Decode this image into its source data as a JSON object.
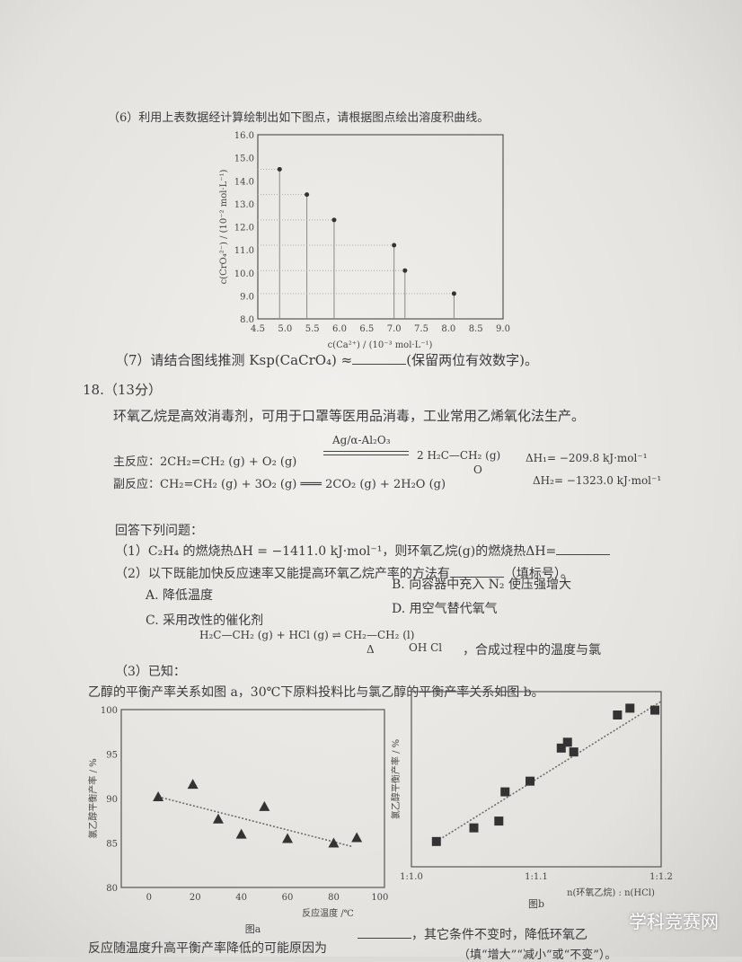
{
  "q6": "（6）利用上表数据经计算绘制出如下图点，请根据图点绘出溶度积曲线。",
  "q7": "（7）请结合图线推测 Ksp(CaCrO₄) ≈",
  "q7_tail": "(保留两位有效数字)。",
  "q18": "18.（13分）",
  "intro": "环氧乙烷是高效消毒剂，可用于口罩等医用品消毒，工业常用乙烯氧化法生产。",
  "main_reaction": "主反应：2CH₂=CH₂ (g) + O₂ (g)",
  "catalyst": "Ag/α-Al₂O₃",
  "main_product": "2 H₂C—CH₂ (g)",
  "epoxide_o": "O",
  "dh1": "ΔH₁= −209.8 kJ·mol⁻¹",
  "side_reaction": "副反应：CH₂=CH₂ (g) + 3O₂ (g) ═══ 2CO₂ (g) + 2H₂O (g)",
  "dh2": "ΔH₂= −1323.0 kJ·mol⁻¹",
  "answer": "回答下列问题：",
  "p1": "（1）C₂H₄ 的燃烧热ΔH = −1411.0 kJ·mol⁻¹，则环氧乙烷(g)的燃烧热ΔH=",
  "p2": "（2）以下既能加快反应速率又能提高环氧乙烷产率的方法有",
  "p2_tail": "（填标号）。",
  "optA": "A. 降低温度",
  "optB": "B. 向容器中充入 N₂ 使压强增大",
  "optC": "C. 采用改性的催化剂",
  "optD": "D. 用空气替代氧气",
  "p3_label": "（3）已知：",
  "p3_eq": "H₂C—CH₂ (g) + HCl (g) ⇌ CH₂—CH₂ (l)",
  "p3_delta": "Δ",
  "p3_sub": "OH    Cl",
  "p3_tail": "，合成过程中的温度与氯",
  "p3_line2": "乙醇的平衡产率关系如图 a，30℃下原料投料比与氯乙醇的平衡产率关系如图 b。",
  "bottom1": "，其它条件不变时，降低环氧乙",
  "bottom2": "反应随温度升高平衡产率降低的可能原因为",
  "bottom3": "（填“增大”“减小”或“不变”）。",
  "watermark": "学科竞赛网",
  "chart_data": [
    {
      "type": "scatter",
      "xlabel": "c(Ca²⁺) / (10⁻³ mol·L⁻¹)",
      "ylabel": "c(CrO₄²⁻) / (10⁻² mol·L⁻¹)",
      "xlim": [
        4.5,
        9.0
      ],
      "ylim": [
        8.0,
        16.0
      ],
      "xticks": [
        "4.5",
        "5.0",
        "5.5",
        "6.0",
        "6.5",
        "7.0",
        "7.5",
        "8.0",
        "8.5",
        "9.0"
      ],
      "yticks": [
        "8.0",
        "9.0",
        "10.0",
        "11.0",
        "12.0",
        "13.0",
        "14.0",
        "15.0",
        "16.0"
      ],
      "points": [
        [
          4.9,
          14.5
        ],
        [
          5.4,
          13.4
        ],
        [
          5.9,
          12.3
        ],
        [
          7.0,
          11.2
        ],
        [
          7.2,
          10.1
        ],
        [
          8.1,
          9.1
        ]
      ]
    },
    {
      "type": "scatter",
      "title": "图a",
      "xlabel": "反应温度 /℃",
      "ylabel": "氯乙醇平衡产率 / %",
      "xlim": [
        -12,
        102
      ],
      "ylim": [
        80,
        100
      ],
      "xticks": [
        "0",
        "20",
        "40",
        "60",
        "80",
        "100"
      ],
      "yticks": [
        "80",
        "85",
        "90",
        "95",
        "100"
      ],
      "points": [
        [
          4,
          90.2
        ],
        [
          19,
          91.6
        ],
        [
          30,
          87.7
        ],
        [
          40,
          86.0
        ],
        [
          50,
          89.1
        ],
        [
          60,
          85.5
        ],
        [
          80,
          85.0
        ],
        [
          90,
          85.6
        ]
      ],
      "trend": [
        [
          4,
          90.2
        ],
        [
          88,
          84.6
        ]
      ]
    },
    {
      "type": "scatter",
      "title": "图b",
      "xlabel": "n(环氧乙烷) : n(HCl)",
      "ylabel": "氯乙醇平衡产率 / %",
      "xlim": [
        1.0,
        1.2
      ],
      "ylim": [
        84,
        102
      ],
      "xticks": [
        "1:1.0",
        "1:1.1",
        "1:1.2"
      ],
      "points": [
        [
          1.02,
          86.6
        ],
        [
          1.05,
          88.0
        ],
        [
          1.07,
          88.7
        ],
        [
          1.075,
          91.7
        ],
        [
          1.095,
          92.8
        ],
        [
          1.12,
          96.2
        ],
        [
          1.125,
          96.8
        ],
        [
          1.13,
          95.8
        ],
        [
          1.165,
          99.6
        ],
        [
          1.175,
          100.3
        ],
        [
          1.195,
          100.1
        ]
      ],
      "trend": [
        [
          1.02,
          86.6
        ],
        [
          1.2,
          101
        ]
      ]
    }
  ]
}
